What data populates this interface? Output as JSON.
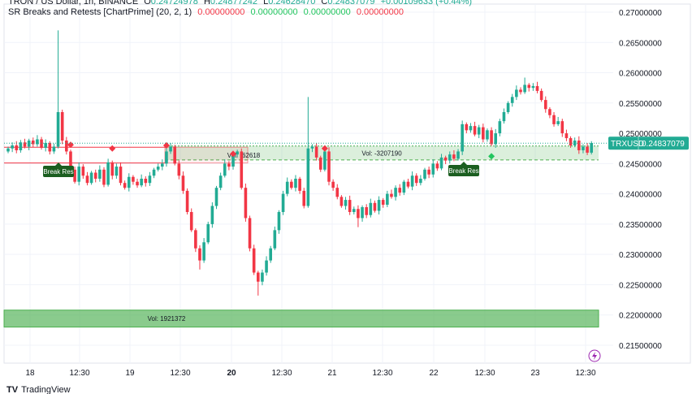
{
  "header": {
    "symbol_line": "TRON / US Dollar, 1h, BINANCE",
    "o_label": "O",
    "o": "0.24724978",
    "h_label": "H",
    "h": "0.24877242",
    "l_label": "L",
    "l": "0.24628470",
    "c_label": "C",
    "c": "0.24837079",
    "change": "+0.00109633 (+0.44%)"
  },
  "indicator": {
    "name": "SR Breaks and Retests [ChartPrime] (20, 2, 1)",
    "values": [
      "0.00000000",
      "0.00000000",
      "0.00000000",
      "0.00000000"
    ]
  },
  "price_tag": {
    "symbol": "TRXUSD",
    "price": "0.24837079",
    "value": 0.24837079
  },
  "branding": "TradingView",
  "colors": {
    "up": "#22ab94",
    "down": "#f23645",
    "zone_green": "#4caf50",
    "zone_red": "#f23645",
    "signal_green": "#22c55e"
  },
  "chart_data": {
    "type": "candlestick",
    "ylim": [
      0.2125,
      0.2725
    ],
    "y_ticks": [
      "0.27000000",
      "0.26500000",
      "0.26000000",
      "0.25500000",
      "0.25000000",
      "0.24500000",
      "0.24000000",
      "0.23500000",
      "0.23000000",
      "0.22500000",
      "0.22000000",
      "0.21500000"
    ],
    "x_ticks": [
      "18",
      "12:30",
      "19",
      "12:30",
      "20",
      "12:30",
      "21",
      "12:30",
      "22",
      "12:30",
      "23",
      "12:30"
    ],
    "bold_x_tick": "20",
    "first_open": 0.247,
    "closes": [
      0.2475,
      0.248,
      0.2472,
      0.2485,
      0.2478,
      0.2488,
      0.2482,
      0.249,
      0.2476,
      0.2484,
      0.247,
      0.2478,
      0.2535,
      0.2488,
      0.247,
      0.244,
      0.242,
      0.2445,
      0.243,
      0.2418,
      0.2435,
      0.2425,
      0.244,
      0.2415,
      0.2452,
      0.243,
      0.2445,
      0.2418,
      0.241,
      0.2428,
      0.242,
      0.2414,
      0.2425,
      0.2418,
      0.243,
      0.244,
      0.2445,
      0.245,
      0.247,
      0.2478,
      0.245,
      0.243,
      0.2405,
      0.237,
      0.234,
      0.231,
      0.229,
      0.232,
      0.235,
      0.238,
      0.241,
      0.243,
      0.245,
      0.2445,
      0.2465,
      0.247,
      0.241,
      0.236,
      0.231,
      0.227,
      0.2255,
      0.227,
      0.229,
      0.231,
      0.234,
      0.237,
      0.24,
      0.242,
      0.241,
      0.2425,
      0.2405,
      0.238,
      0.2475,
      0.2478,
      0.246,
      0.244,
      0.247,
      0.242,
      0.241,
      0.2395,
      0.238,
      0.239,
      0.237,
      0.2375,
      0.236,
      0.2378,
      0.2365,
      0.2385,
      0.2372,
      0.239,
      0.2382,
      0.24,
      0.2395,
      0.241,
      0.2402,
      0.242,
      0.2412,
      0.243,
      0.2418,
      0.2425,
      0.244,
      0.2432,
      0.245,
      0.2442,
      0.246,
      0.2455,
      0.2465,
      0.2458,
      0.247,
      0.2515,
      0.2505,
      0.2512,
      0.2498,
      0.251,
      0.249,
      0.2505,
      0.2482,
      0.25,
      0.252,
      0.2535,
      0.255,
      0.256,
      0.2572,
      0.2568,
      0.258,
      0.2575,
      0.2578,
      0.257,
      0.2555,
      0.254,
      0.253,
      0.2515,
      0.252,
      0.25,
      0.2492,
      0.248,
      0.2488,
      0.2472,
      0.2478,
      0.2468,
      0.2484
    ],
    "notable_highs": {
      "12": 0.267,
      "72": 0.256,
      "38": 0.2485,
      "124": 0.2592
    },
    "notable_lows": {
      "60": 0.2232,
      "46": 0.2275,
      "84": 0.2345
    },
    "zones": [
      {
        "kind": "resistance-broken",
        "color": "green",
        "top": 0.2479,
        "bottom": 0.2456,
        "label": "Vol: -3207190"
      },
      {
        "kind": "resistance",
        "color": "red",
        "top": 0.2477,
        "bottom": 0.2451,
        "label": "Vol: -62618"
      },
      {
        "kind": "support",
        "color": "green",
        "top": 0.2208,
        "bottom": 0.218,
        "label": "Vol: 1921372"
      }
    ],
    "break_labels": [
      "Break Res",
      "Break Res"
    ],
    "signals": [
      {
        "index": 15,
        "price": 0.2481,
        "color": "red"
      },
      {
        "index": 25,
        "price": 0.2475,
        "color": "red"
      },
      {
        "index": 38,
        "price": 0.248,
        "color": "red"
      },
      {
        "index": 54,
        "price": 0.2466,
        "color": "red"
      },
      {
        "index": 76,
        "price": 0.2475,
        "color": "red"
      },
      {
        "index": 116,
        "price": 0.2462,
        "color": "green"
      }
    ]
  }
}
